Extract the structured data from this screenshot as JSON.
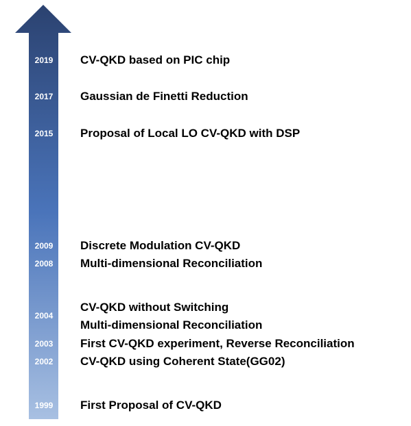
{
  "colors": {
    "arrow_top": "#2B4270",
    "arrow_mid": "#4A74BA",
    "arrow_bottom": "#A8C0E2"
  },
  "timeline": [
    {
      "year": "2019",
      "milestones": [
        "CV-QKD based on PIC chip"
      ]
    },
    {
      "year": "2017",
      "milestones": [
        "Gaussian de Finetti Reduction"
      ]
    },
    {
      "year": "2015",
      "milestones": [
        "Proposal of Local LO CV-QKD with DSP"
      ]
    },
    {
      "year": "2009",
      "milestones": [
        "Discrete Modulation CV-QKD"
      ]
    },
    {
      "year": "2008",
      "milestones": [
        "Multi-dimensional Reconciliation"
      ]
    },
    {
      "year": "2004",
      "milestones": [
        "CV-QKD without Switching",
        "Multi-dimensional Reconciliation"
      ]
    },
    {
      "year": "2003",
      "milestones": [
        "First CV-QKD experiment, Reverse Reconciliation"
      ]
    },
    {
      "year": "2002",
      "milestones": [
        "CV-QKD using Coherent State(GG02)"
      ]
    },
    {
      "year": "1999",
      "milestones": [
        "First Proposal of CV-QKD"
      ]
    }
  ]
}
